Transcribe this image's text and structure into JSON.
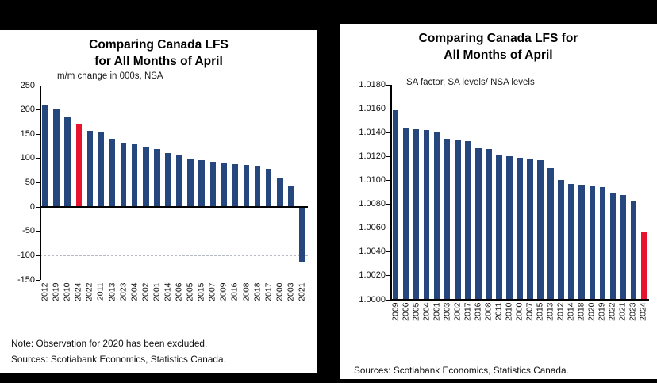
{
  "window": {
    "background": "#000000",
    "panel_background": "#ffffff"
  },
  "colors": {
    "bar": "#26477e",
    "highlight": "#e8132e",
    "axis": "#000000",
    "grid": "#b4b9c3"
  },
  "chart_data": [
    {
      "type": "bar",
      "title_lines": [
        "Comparing Canada LFS",
        "for All Months of April"
      ],
      "subtitle": "m/m change in 000s, NSA",
      "categories": [
        "2012",
        "2019",
        "2010",
        "2024",
        "2022",
        "2011",
        "2013",
        "2023",
        "2004",
        "2002",
        "2001",
        "2014",
        "2006",
        "2005",
        "2015",
        "2007",
        "2009",
        "2016",
        "2008",
        "2018",
        "2017",
        "2000",
        "2003",
        "2021"
      ],
      "values": [
        210,
        201,
        185,
        172,
        157,
        154,
        141,
        133,
        129,
        122,
        119,
        112,
        107,
        100,
        96,
        93,
        90,
        88,
        87,
        85,
        79,
        60,
        45,
        -112
      ],
      "highlight_category": "2024",
      "ylim": [
        -150,
        250
      ],
      "ytick_step": 50,
      "ytick_decimals": 0,
      "legend": "none",
      "grid": "dashed-below-zero",
      "note": "Note: Observation for 2020 has been excluded.",
      "sources": "Sources: Scotiabank Economics, Statistics Canada."
    },
    {
      "type": "bar",
      "title_lines": [
        "Comparing Canada LFS for",
        "All Months of April"
      ],
      "subtitle": "SA factor, SA levels/ NSA levels",
      "categories": [
        "2009",
        "2006",
        "2005",
        "2004",
        "2001",
        "2003",
        "2002",
        "2017",
        "2016",
        "2008",
        "2011",
        "2010",
        "2000",
        "2007",
        "2015",
        "2013",
        "2012",
        "2014",
        "2018",
        "2020",
        "2019",
        "2022",
        "2021",
        "2023",
        "2024"
      ],
      "values": [
        1.0159,
        1.0144,
        1.0143,
        1.0142,
        1.0141,
        1.0135,
        1.0134,
        1.0133,
        1.0127,
        1.0126,
        1.0121,
        1.012,
        1.0119,
        1.0118,
        1.0117,
        1.011,
        1.01,
        1.0097,
        1.0096,
        1.0095,
        1.0094,
        1.0089,
        1.0088,
        1.0083,
        1.0057
      ],
      "highlight_category": "2024",
      "ylim": [
        1.0,
        1.018
      ],
      "ytick_step": 0.002,
      "ytick_decimals": 4,
      "legend": "none",
      "grid": "none",
      "sources": "Sources: Scotiabank Economics, Statistics Canada."
    }
  ]
}
